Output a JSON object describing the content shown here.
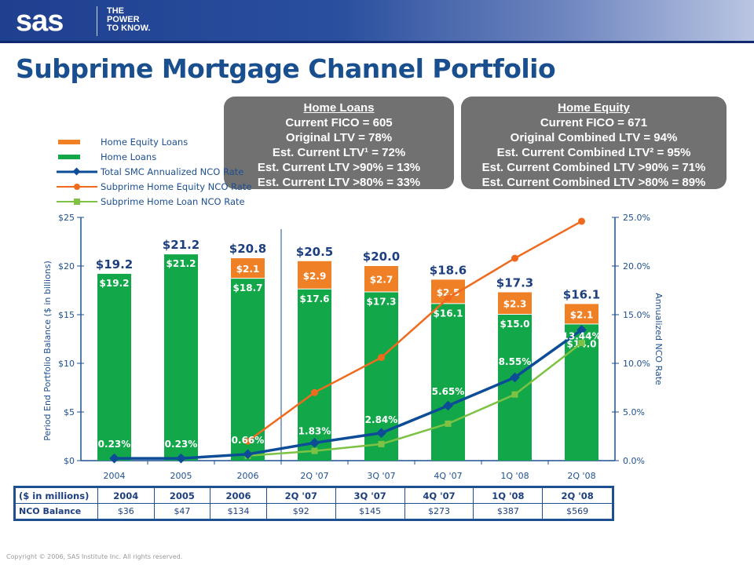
{
  "header": {
    "logo": "sas",
    "tagline": [
      "THE",
      "POWER",
      "TO KNOW."
    ]
  },
  "title": "Subprime Mortgage Channel Portfolio",
  "home_loans_box": {
    "heading": "Home Loans",
    "lines": [
      "Current FICO = 605",
      "Original LTV = 78%",
      "Est. Current LTV¹ = 72%",
      "Est. Current LTV >90% = 13%",
      "Est. Current LTV >80% = 33%"
    ]
  },
  "home_equity_box": {
    "heading": "Home Equity",
    "lines": [
      "Current FICO = 671",
      "Original Combined LTV = 94%",
      "Est. Current Combined LTV² = 95%",
      "Est. Current Combined LTV >90% = 71%",
      "Est. Current Combined LTV >80% = 89%"
    ]
  },
  "colors": {
    "home_equity": "#f08026",
    "home_loans": "#12a84a",
    "total_nco": "#0d4c96",
    "he_nco": "#f06a1e",
    "hl_nco": "#7dc242",
    "axis": "#1d4f91"
  },
  "chart_data": {
    "type": "bar",
    "categories": [
      "2004",
      "2005",
      "2006",
      "2Q '07",
      "3Q '07",
      "4Q '07",
      "1Q '08",
      "2Q '08"
    ],
    "ylabel": "Period End Portfolio Balance ($ in billions)",
    "y2label": "Annualized NCO Rate",
    "ylim": [
      0,
      25
    ],
    "y2lim": [
      0,
      25
    ],
    "yticks": [
      "$0",
      "$5",
      "$10",
      "$15",
      "$20",
      "$25"
    ],
    "y2ticks": [
      "0.0%",
      "5.0%",
      "10.0%",
      "15.0%",
      "20.0%",
      "25.0%"
    ],
    "legend_placement": "top-left",
    "totals": [
      "$19.2",
      "$21.2",
      "$20.8",
      "$20.5",
      "$20.0",
      "$18.6",
      "$17.3",
      "$16.1"
    ],
    "series": [
      {
        "name": "Home Equity Loans",
        "kind": "bar",
        "values": [
          0,
          0,
          2.1,
          2.9,
          2.7,
          2.5,
          2.3,
          2.1
        ],
        "labels": [
          "",
          "",
          "$2.1",
          "$2.9",
          "$2.7",
          "$2.5",
          "$2.3",
          "$2.1"
        ]
      },
      {
        "name": "Home Loans",
        "kind": "bar",
        "values": [
          19.2,
          21.2,
          18.7,
          17.6,
          17.3,
          16.1,
          15.0,
          14.0
        ],
        "labels": [
          "$19.2",
          "$21.2",
          "$18.7",
          "$17.6",
          "$17.3",
          "$16.1",
          "$15.0",
          "$14.0"
        ]
      },
      {
        "name": "Total SMC Annualized NCO Rate",
        "kind": "line",
        "values": [
          0.23,
          0.23,
          0.66,
          1.83,
          2.84,
          5.65,
          8.55,
          13.44
        ],
        "labels": [
          "0.23%",
          "0.23%",
          "0.66%",
          "1.83%",
          "2.84%",
          "5.65%",
          "8.55%",
          "13.44%"
        ]
      },
      {
        "name": "Subprime Home Equity NCO Rate",
        "kind": "line",
        "values": [
          null,
          null,
          2.0,
          7.0,
          10.6,
          16.7,
          20.8,
          24.6
        ]
      },
      {
        "name": "Subprime Home Loan NCO Rate",
        "kind": "line",
        "values": [
          null,
          null,
          0.5,
          1.0,
          1.7,
          3.8,
          6.8,
          12.1
        ]
      }
    ]
  },
  "table": {
    "header": [
      "($ in millions)",
      "2004",
      "2005",
      "2006",
      "2Q '07",
      "3Q '07",
      "4Q '07",
      "1Q '08",
      "2Q '08"
    ],
    "rows": [
      [
        "NCO Balance",
        "$36",
        "$47",
        "$134",
        "$92",
        "$145",
        "$273",
        "$387",
        "$569"
      ]
    ]
  },
  "footer": "Copyright © 2006, SAS Institute Inc. All rights reserved."
}
